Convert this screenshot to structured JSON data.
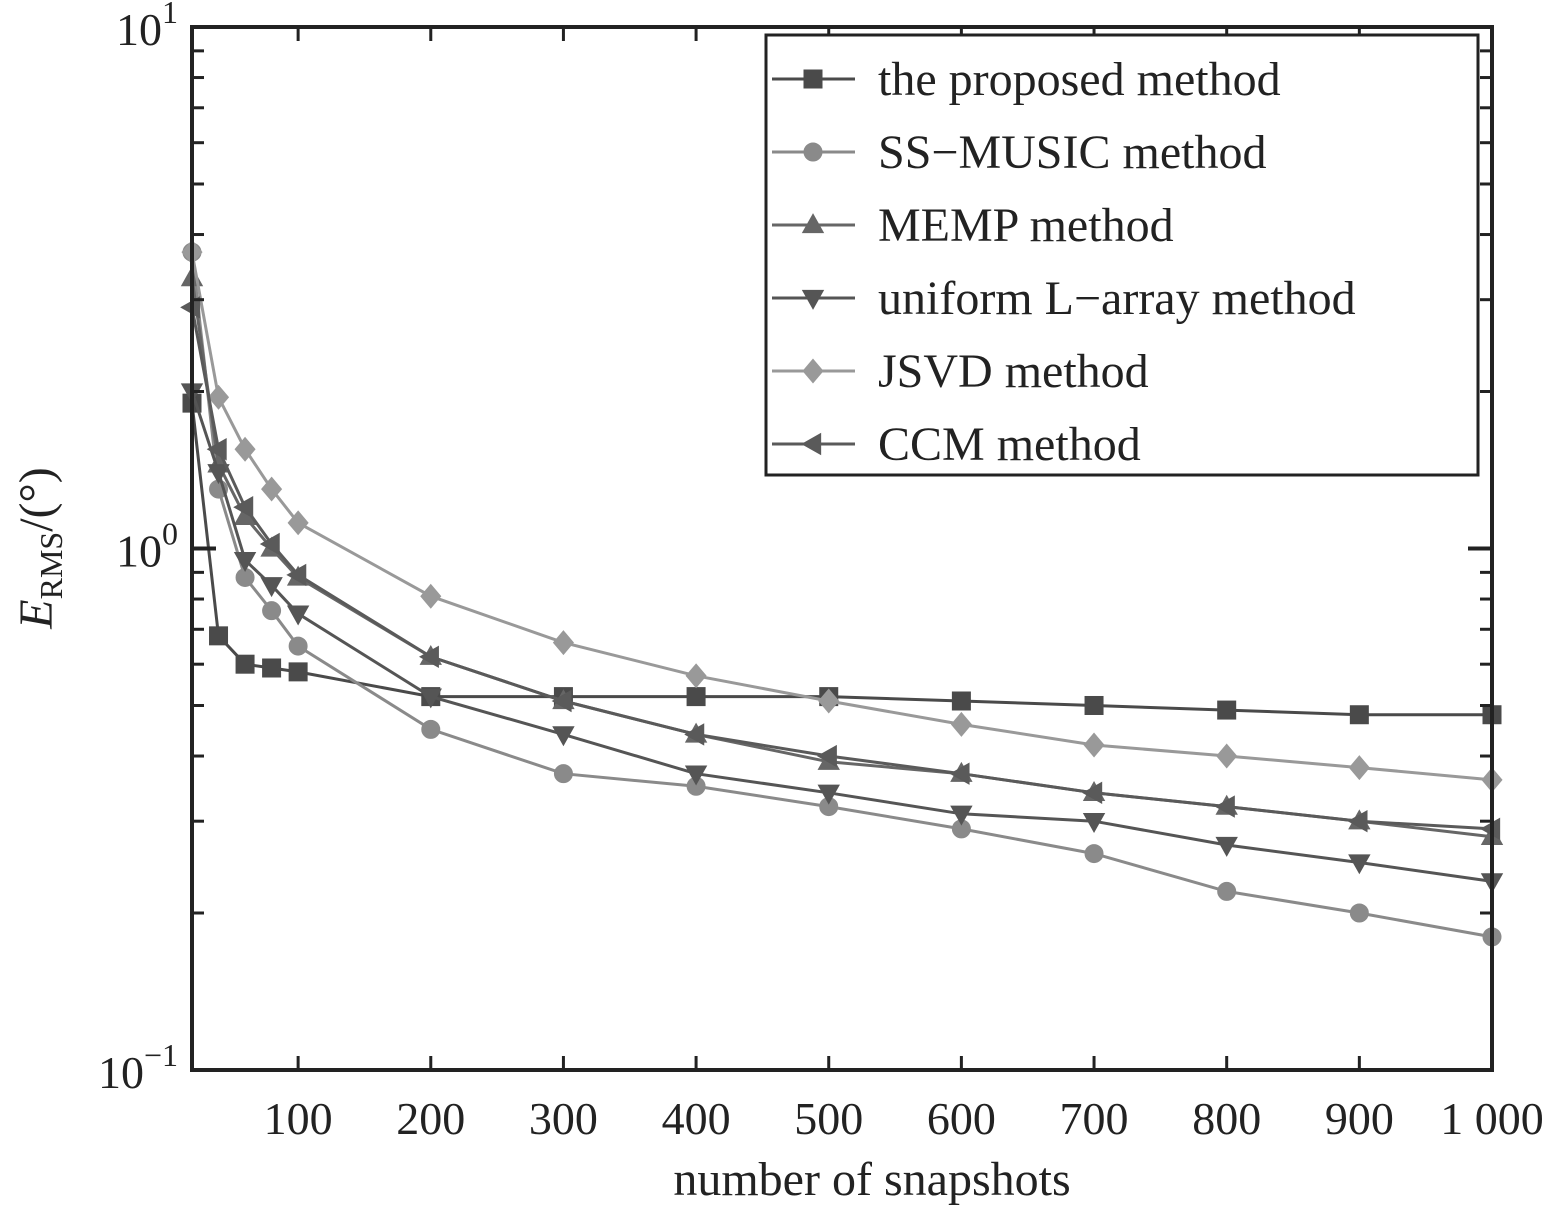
{
  "chart_data": {
    "type": "line",
    "xlabel": "number of snapshots",
    "ylabel_main": "E",
    "ylabel_sub": "RMS",
    "ylabel_unit": "/(°)",
    "yscale": "log",
    "xlim": [
      20,
      1000
    ],
    "ylim": [
      0.1,
      10
    ],
    "x_ticks": [
      100,
      200,
      300,
      400,
      500,
      600,
      700,
      800,
      900,
      1000
    ],
    "x_tick_labels": [
      "100",
      "200",
      "300",
      "400",
      "500",
      "600",
      "700",
      "800",
      "900",
      "1 000"
    ],
    "y_ticks": [
      {
        "value": 10,
        "base": "10",
        "exp": "1"
      },
      {
        "value": 1,
        "base": "10",
        "exp": "0"
      },
      {
        "value": 0.1,
        "base": "10",
        "exp": "−1"
      }
    ],
    "legend_position": "top-right",
    "x": [
      20,
      40,
      60,
      80,
      100,
      200,
      300,
      400,
      500,
      600,
      700,
      800,
      900,
      1000
    ],
    "series": [
      {
        "name": "the proposed method",
        "marker": "square",
        "color": "#4a4a4a",
        "values": [
          1.9,
          0.68,
          0.6,
          0.59,
          0.58,
          0.52,
          0.52,
          0.52,
          0.52,
          0.51,
          0.5,
          0.49,
          0.48,
          0.48
        ]
      },
      {
        "name": "SS−MUSIC method",
        "marker": "circle",
        "color": "#8a8a8a",
        "values": [
          3.7,
          1.3,
          0.88,
          0.76,
          0.65,
          0.45,
          0.37,
          0.35,
          0.32,
          0.29,
          0.26,
          0.22,
          0.2,
          0.18
        ]
      },
      {
        "name": "MEMP method",
        "marker": "triangle-up",
        "color": "#666666",
        "values": [
          3.3,
          1.45,
          1.15,
          1.0,
          0.88,
          0.62,
          0.51,
          0.44,
          0.39,
          0.37,
          0.34,
          0.32,
          0.3,
          0.28
        ]
      },
      {
        "name": "uniform L−array method",
        "marker": "triangle-down",
        "color": "#555555",
        "values": [
          2.0,
          1.4,
          0.95,
          0.85,
          0.75,
          0.52,
          0.44,
          0.37,
          0.34,
          0.31,
          0.3,
          0.27,
          0.25,
          0.23
        ]
      },
      {
        "name": "JSVD method",
        "marker": "diamond",
        "color": "#999999",
        "values": [
          3.7,
          1.95,
          1.55,
          1.3,
          1.12,
          0.81,
          0.66,
          0.57,
          0.51,
          0.46,
          0.42,
          0.4,
          0.38,
          0.36
        ]
      },
      {
        "name": "CCM method",
        "marker": "triangle-left",
        "color": "#5a5a5a",
        "values": [
          2.9,
          1.55,
          1.2,
          1.02,
          0.89,
          0.62,
          0.51,
          0.44,
          0.4,
          0.37,
          0.34,
          0.32,
          0.3,
          0.29
        ]
      }
    ]
  }
}
